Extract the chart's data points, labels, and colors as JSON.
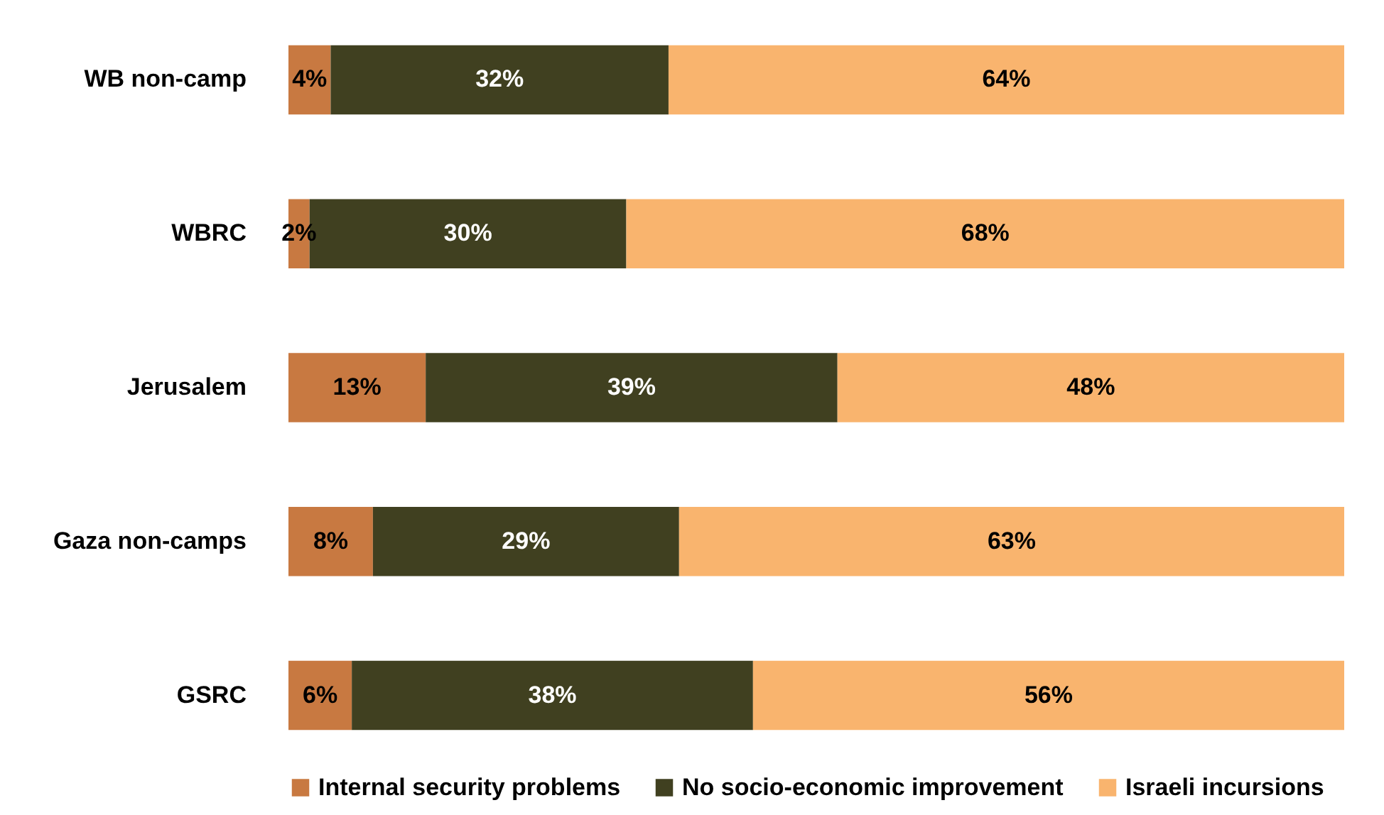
{
  "chart_data": {
    "type": "bar",
    "orientation": "horizontal",
    "stacked": true,
    "categories": [
      "WB non-camp",
      "WBRC",
      "Jerusalem",
      "Gaza non-camps",
      "GSRC"
    ],
    "xlim": [
      0,
      100
    ],
    "legend": "bottom",
    "tick_labels": "y",
    "series": [
      {
        "name": "Internal security problems",
        "color": "#c87941",
        "values": [
          4,
          2,
          13,
          8,
          6
        ],
        "value_labels": [
          "4%",
          "2%",
          "13%",
          "8%",
          "6%"
        ]
      },
      {
        "name": "No socio-economic improvement",
        "color": "#404020",
        "values": [
          32,
          30,
          39,
          29,
          38
        ],
        "value_labels": [
          "32%",
          "30%",
          "39%",
          "29%",
          "38%"
        ]
      },
      {
        "name": "Israeli incursions",
        "color": "#f9b46e",
        "values": [
          64,
          68,
          48,
          63,
          56
        ],
        "value_labels": [
          "64%",
          "68%",
          "48%",
          "63%",
          "56%"
        ]
      }
    ]
  }
}
